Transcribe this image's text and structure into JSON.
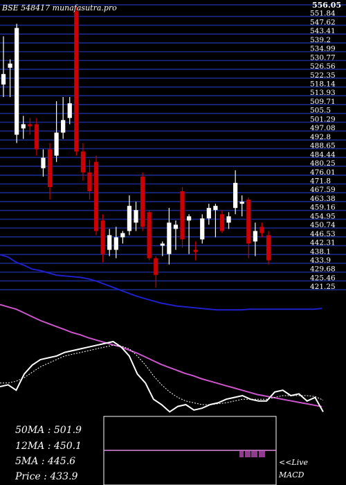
{
  "header": {
    "title": "BSE 548417 munafasutra.pro",
    "top_price": "556.05"
  },
  "colors": {
    "bg": "#000000",
    "grid": "#1a2a8c",
    "bull": "#ffffff",
    "bear": "#cc0000",
    "ma_slow": "#cc55cc",
    "ma_fast": "#1f1fcc",
    "macd_line": "#ffffff",
    "signal": "#ffffff",
    "macd_box": "#ffffff",
    "macd_mark": "#cc55cc"
  },
  "stats": {
    "ma50": "50MA : 501.9",
    "ma12": "12MA : 450.1",
    "ma5": "5MA : 445.6",
    "price": "Price   : 433.9"
  },
  "macd_label": {
    "live": "<<Live",
    "name": "MACD"
  },
  "chart_data": {
    "type": "candlestick",
    "ylim": [
      419,
      556.05
    ],
    "y_ticks": [
      "551.84",
      "547.62",
      "543.41",
      "539.2",
      "534.99",
      "530.77",
      "526.56",
      "522.35",
      "518.14",
      "513.93",
      "509.71",
      "505.5",
      "501.29",
      "497.08",
      "492.8",
      "488.65",
      "484.44",
      "480.25",
      "476.01",
      "471.8",
      "467.59",
      "463.38",
      "459.16",
      "454.95",
      "450.74",
      "446.53",
      "442.31",
      "438.1",
      "433.9",
      "429.68",
      "425.46",
      "421.25"
    ],
    "candles": [
      {
        "o": 518,
        "h": 541,
        "l": 512,
        "c": 523
      },
      {
        "o": 526,
        "h": 530,
        "l": 512,
        "c": 528
      },
      {
        "o": 494,
        "h": 547,
        "l": 490,
        "c": 545
      },
      {
        "o": 497,
        "h": 503,
        "l": 492,
        "c": 499
      },
      {
        "o": 499,
        "h": 502,
        "l": 494,
        "c": 498
      },
      {
        "o": 499,
        "h": 502,
        "l": 484,
        "c": 487
      },
      {
        "o": 478,
        "h": 487,
        "l": 474,
        "c": 483
      },
      {
        "o": 487,
        "h": 490,
        "l": 463,
        "c": 469
      },
      {
        "o": 484,
        "h": 510,
        "l": 481,
        "c": 495
      },
      {
        "o": 495,
        "h": 512,
        "l": 492,
        "c": 501
      },
      {
        "o": 502,
        "h": 512,
        "l": 499,
        "c": 509
      },
      {
        "o": 553,
        "h": 555,
        "l": 484,
        "c": 486
      },
      {
        "o": 486,
        "h": 490,
        "l": 472,
        "c": 476
      },
      {
        "o": 476,
        "h": 482,
        "l": 463,
        "c": 467
      },
      {
        "o": 481,
        "h": 484,
        "l": 446,
        "c": 448
      },
      {
        "o": 453,
        "h": 456,
        "l": 433,
        "c": 437
      },
      {
        "o": 439,
        "h": 449,
        "l": 436,
        "c": 446
      },
      {
        "o": 439,
        "h": 450,
        "l": 435,
        "c": 445
      },
      {
        "o": 445,
        "h": 448,
        "l": 442,
        "c": 447
      },
      {
        "o": 448,
        "h": 465,
        "l": 446,
        "c": 460
      },
      {
        "o": 452,
        "h": 462,
        "l": 448,
        "c": 458
      },
      {
        "o": 474,
        "h": 476,
        "l": 448,
        "c": 450
      },
      {
        "o": 457,
        "h": 458,
        "l": 434,
        "c": 435
      },
      {
        "o": 435,
        "h": 436,
        "l": 421,
        "c": 427
      },
      {
        "o": 441,
        "h": 443,
        "l": 436,
        "c": 442
      },
      {
        "o": 437,
        "h": 459,
        "l": 432,
        "c": 452
      },
      {
        "o": 449,
        "h": 453,
        "l": 439,
        "c": 451
      },
      {
        "o": 467,
        "h": 469,
        "l": 440,
        "c": 444
      },
      {
        "o": 453,
        "h": 456,
        "l": 437,
        "c": 455
      },
      {
        "o": 439,
        "h": 443,
        "l": 434,
        "c": 438
      },
      {
        "o": 444,
        "h": 456,
        "l": 442,
        "c": 454
      },
      {
        "o": 454,
        "h": 461,
        "l": 451,
        "c": 459
      },
      {
        "o": 458,
        "h": 461,
        "l": 445,
        "c": 460
      },
      {
        "o": 456,
        "h": 458,
        "l": 447,
        "c": 448
      },
      {
        "o": 452,
        "h": 457,
        "l": 449,
        "c": 455
      },
      {
        "o": 459,
        "h": 477,
        "l": 456,
        "c": 471
      },
      {
        "o": 461,
        "h": 465,
        "l": 455,
        "c": 462
      },
      {
        "o": 463,
        "h": 464,
        "l": 435,
        "c": 442
      },
      {
        "o": 443,
        "h": 452,
        "l": 436,
        "c": 448
      },
      {
        "o": 450,
        "h": 452,
        "l": 445,
        "c": 447
      },
      {
        "o": 446,
        "h": 448,
        "l": 432,
        "c": 434
      }
    ],
    "ma_slow": [
      497,
      494,
      491,
      486,
      481,
      476,
      472,
      468,
      464,
      460,
      457,
      453,
      450,
      447,
      444,
      441,
      437,
      433,
      428,
      423,
      418,
      414,
      410,
      406,
      403,
      399,
      396,
      393,
      390,
      387,
      384,
      381,
      378,
      376,
      374,
      372,
      370,
      368,
      366,
      364,
      362
    ],
    "ma_fast": [
      563,
      560,
      553,
      549,
      544,
      542,
      539,
      536,
      535,
      534,
      533,
      531,
      528,
      524,
      520,
      516,
      512,
      508,
      505,
      502,
      499,
      497,
      495,
      494,
      493,
      492,
      491,
      490,
      490,
      490,
      490,
      491,
      491,
      491,
      491,
      491,
      491,
      491,
      491,
      491,
      492
    ],
    "macd_line": [
      0.6,
      0.58,
      0.64,
      0.46,
      0.36,
      0.3,
      0.28,
      0.26,
      0.22,
      0.2,
      0.18,
      0.16,
      0.14,
      0.12,
      0.1,
      0.16,
      0.26,
      0.46,
      0.56,
      0.74,
      0.8,
      0.88,
      0.82,
      0.8,
      0.86,
      0.84,
      0.8,
      0.78,
      0.74,
      0.72,
      0.7,
      0.74,
      0.76,
      0.76,
      0.66,
      0.64,
      0.7,
      0.68,
      0.76,
      0.72,
      0.88
    ],
    "signal_line": [
      0.56,
      0.56,
      0.54,
      0.5,
      0.44,
      0.38,
      0.34,
      0.3,
      0.26,
      0.24,
      0.22,
      0.2,
      0.18,
      0.16,
      0.14,
      0.15,
      0.18,
      0.26,
      0.36,
      0.48,
      0.58,
      0.66,
      0.72,
      0.76,
      0.78,
      0.8,
      0.8,
      0.79,
      0.78,
      0.76,
      0.74,
      0.74,
      0.74,
      0.74,
      0.72,
      0.7,
      0.7,
      0.7,
      0.7,
      0.71,
      0.75
    ]
  }
}
